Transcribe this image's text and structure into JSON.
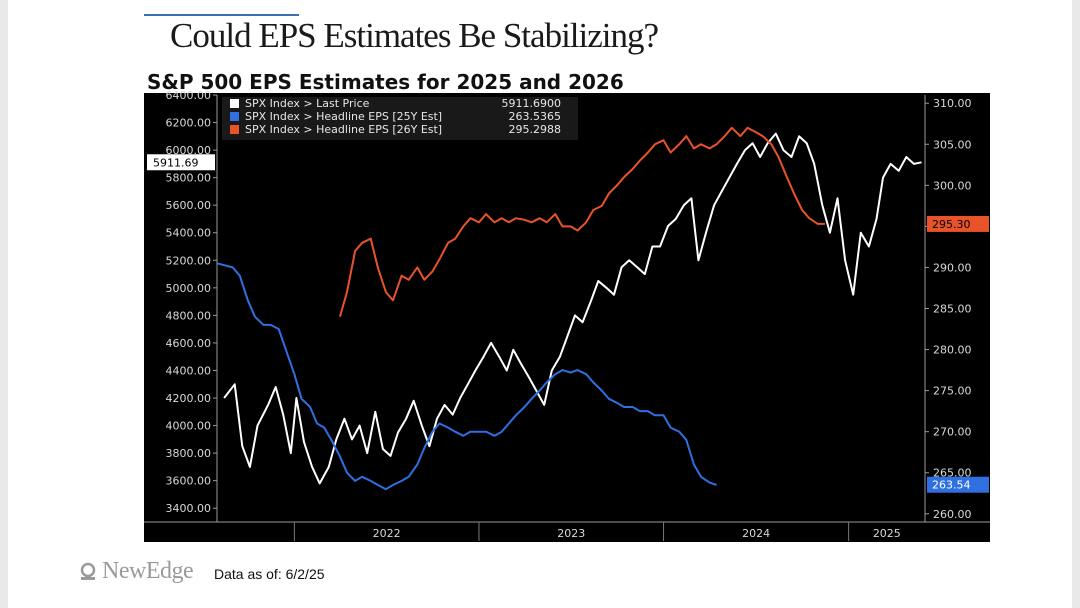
{
  "slide": {
    "title": "Could EPS Estimates Be Stabilizing?",
    "footer_logo": "NewEdge",
    "footer_note": "Data as of: 6/2/25"
  },
  "chart_data": {
    "type": "line",
    "title": "S&P 500 EPS Estimates for 2025 and 2026",
    "background": "#000000",
    "x": {
      "start": "2021-08",
      "end": "2025-06",
      "tick_labels": [
        "2022",
        "2023",
        "2024",
        "2025"
      ]
    },
    "left_axis": {
      "ylim": [
        3300,
        6400
      ],
      "ticks": [
        "3400.00",
        "3600.00",
        "3800.00",
        "4000.00",
        "4200.00",
        "4400.00",
        "4600.00",
        "4800.00",
        "5000.00",
        "5200.00",
        "5400.00",
        "5600.00",
        "5800.00",
        "6000.00",
        "6200.00",
        "6400.00"
      ]
    },
    "right_axis": {
      "ylim": [
        259,
        311
      ],
      "ticks": [
        "260.00",
        "265.00",
        "270.00",
        "275.00",
        "280.00",
        "285.00",
        "290.00",
        "295.00",
        "300.00",
        "305.00",
        "310.00"
      ]
    },
    "legend": {
      "placement": "top-left",
      "entries": [
        {
          "name": "SPX Index > Last Price",
          "value": "5911.6900",
          "color": "#ffffff"
        },
        {
          "name": "SPX Index > Headline EPS [25Y Est]",
          "value": "263.5365",
          "color": "#2f6fe0"
        },
        {
          "name": "SPX Index > Headline EPS [26Y Est]",
          "value": "295.2988",
          "color": "#e8532a"
        }
      ]
    },
    "last_value_labels": {
      "price": "5911.69",
      "eps26": "295.30",
      "eps25": "263.54"
    },
    "series": [
      {
        "name": "SPX Index > Last Price",
        "axis": "left",
        "color": "#ffffff",
        "points": [
          [
            "2021-08-15",
            4200
          ],
          [
            "2021-09-05",
            4300
          ],
          [
            "2021-09-20",
            3850
          ],
          [
            "2021-10-05",
            3700
          ],
          [
            "2021-10-20",
            4000
          ],
          [
            "2021-11-10",
            4150
          ],
          [
            "2021-11-25",
            4280
          ],
          [
            "2021-12-10",
            4080
          ],
          [
            "2021-12-25",
            3800
          ],
          [
            "2022-01-05",
            4200
          ],
          [
            "2022-01-20",
            3880
          ],
          [
            "2022-02-05",
            3700
          ],
          [
            "2022-02-20",
            3580
          ],
          [
            "2022-03-10",
            3700
          ],
          [
            "2022-03-25",
            3900
          ],
          [
            "2022-04-10",
            4050
          ],
          [
            "2022-04-25",
            3900
          ],
          [
            "2022-05-10",
            4000
          ],
          [
            "2022-05-25",
            3800
          ],
          [
            "2022-06-10",
            4100
          ],
          [
            "2022-06-25",
            3830
          ],
          [
            "2022-07-10",
            3780
          ],
          [
            "2022-07-25",
            3950
          ],
          [
            "2022-08-10",
            4050
          ],
          [
            "2022-08-25",
            4180
          ],
          [
            "2022-09-10",
            4000
          ],
          [
            "2022-09-25",
            3850
          ],
          [
            "2022-10-10",
            4050
          ],
          [
            "2022-10-25",
            4150
          ],
          [
            "2022-11-10",
            4080
          ],
          [
            "2022-11-25",
            4200
          ],
          [
            "2022-12-10",
            4300
          ],
          [
            "2022-12-25",
            4400
          ],
          [
            "2023-01-10",
            4500
          ],
          [
            "2023-01-25",
            4600
          ],
          [
            "2023-02-10",
            4500
          ],
          [
            "2023-02-25",
            4400
          ],
          [
            "2023-03-10",
            4550
          ],
          [
            "2023-03-25",
            4450
          ],
          [
            "2023-04-10",
            4350
          ],
          [
            "2023-04-25",
            4250
          ],
          [
            "2023-05-10",
            4150
          ],
          [
            "2023-05-25",
            4400
          ],
          [
            "2023-06-10",
            4500
          ],
          [
            "2023-06-25",
            4650
          ],
          [
            "2023-07-10",
            4800
          ],
          [
            "2023-07-25",
            4750
          ],
          [
            "2023-08-10",
            4900
          ],
          [
            "2023-08-25",
            5050
          ],
          [
            "2023-09-10",
            5000
          ],
          [
            "2023-09-25",
            4950
          ],
          [
            "2023-10-10",
            5150
          ],
          [
            "2023-10-25",
            5200
          ],
          [
            "2023-11-10",
            5150
          ],
          [
            "2023-11-25",
            5100
          ],
          [
            "2023-12-10",
            5300
          ],
          [
            "2023-12-25",
            5300
          ],
          [
            "2024-01-10",
            5450
          ],
          [
            "2024-01-25",
            5500
          ],
          [
            "2024-02-10",
            5600
          ],
          [
            "2024-02-25",
            5650
          ],
          [
            "2024-03-10",
            5200
          ],
          [
            "2024-03-25",
            5400
          ],
          [
            "2024-04-10",
            5600
          ],
          [
            "2024-04-25",
            5700
          ],
          [
            "2024-05-10",
            5800
          ],
          [
            "2024-05-25",
            5900
          ],
          [
            "2024-06-10",
            6000
          ],
          [
            "2024-06-25",
            6050
          ],
          [
            "2024-07-10",
            5950
          ],
          [
            "2024-07-25",
            6050
          ],
          [
            "2024-08-10",
            6120
          ],
          [
            "2024-08-25",
            6000
          ],
          [
            "2024-09-10",
            5950
          ],
          [
            "2024-09-25",
            6100
          ],
          [
            "2024-10-10",
            6050
          ],
          [
            "2024-10-25",
            5900
          ],
          [
            "2024-11-10",
            5600
          ],
          [
            "2024-11-25",
            5400
          ],
          [
            "2024-12-10",
            5650
          ],
          [
            "2024-12-25",
            5200
          ],
          [
            "2025-01-10",
            4950
          ],
          [
            "2025-01-25",
            5400
          ],
          [
            "2025-02-10",
            5300
          ],
          [
            "2025-02-25",
            5500
          ],
          [
            "2025-03-10",
            5800
          ],
          [
            "2025-03-25",
            5900
          ],
          [
            "2025-04-10",
            5850
          ],
          [
            "2025-04-25",
            5950
          ],
          [
            "2025-05-10",
            5900
          ],
          [
            "2025-05-25",
            5911.69
          ]
        ]
      },
      {
        "name": "SPX Index > Headline EPS [26Y Est]",
        "axis": "right",
        "color": "#e8532a",
        "points": [
          [
            "2022-04-01",
            284
          ],
          [
            "2022-04-15",
            287
          ],
          [
            "2022-05-01",
            292
          ],
          [
            "2022-05-15",
            293
          ],
          [
            "2022-06-01",
            293.5
          ],
          [
            "2022-06-15",
            290
          ],
          [
            "2022-07-01",
            287
          ],
          [
            "2022-07-15",
            286
          ],
          [
            "2022-08-01",
            289
          ],
          [
            "2022-08-15",
            288.5
          ],
          [
            "2022-09-01",
            290
          ],
          [
            "2022-09-15",
            288.5
          ],
          [
            "2022-10-01",
            289.5
          ],
          [
            "2022-10-15",
            291
          ],
          [
            "2022-11-01",
            293
          ],
          [
            "2022-11-15",
            293.5
          ],
          [
            "2022-12-01",
            295
          ],
          [
            "2022-12-15",
            296
          ],
          [
            "2023-01-01",
            295.5
          ],
          [
            "2023-01-15",
            296.5
          ],
          [
            "2023-02-01",
            295.5
          ],
          [
            "2023-02-15",
            296
          ],
          [
            "2023-03-01",
            295.5
          ],
          [
            "2023-03-15",
            296
          ],
          [
            "2023-04-01",
            295.8
          ],
          [
            "2023-04-15",
            295.5
          ],
          [
            "2023-05-01",
            296
          ],
          [
            "2023-05-15",
            295.5
          ],
          [
            "2023-06-01",
            296.5
          ],
          [
            "2023-06-15",
            295
          ],
          [
            "2023-07-01",
            295
          ],
          [
            "2023-07-15",
            294.5
          ],
          [
            "2023-08-01",
            295.5
          ],
          [
            "2023-08-15",
            297
          ],
          [
            "2023-09-01",
            297.5
          ],
          [
            "2023-09-15",
            299
          ],
          [
            "2023-10-01",
            300
          ],
          [
            "2023-10-15",
            301
          ],
          [
            "2023-11-01",
            302
          ],
          [
            "2023-11-15",
            303
          ],
          [
            "2023-12-01",
            304
          ],
          [
            "2023-12-15",
            305
          ],
          [
            "2024-01-01",
            305.5
          ],
          [
            "2024-01-15",
            304
          ],
          [
            "2024-02-01",
            305
          ],
          [
            "2024-02-15",
            306
          ],
          [
            "2024-03-01",
            304.5
          ],
          [
            "2024-03-15",
            305
          ],
          [
            "2024-04-01",
            304.5
          ],
          [
            "2024-04-15",
            305
          ],
          [
            "2024-05-01",
            306
          ],
          [
            "2024-05-15",
            307
          ],
          [
            "2024-06-01",
            306
          ],
          [
            "2024-06-15",
            307
          ],
          [
            "2024-07-01",
            306.5
          ],
          [
            "2024-07-15",
            306
          ],
          [
            "2024-08-01",
            305
          ],
          [
            "2024-08-15",
            303.5
          ],
          [
            "2024-09-01",
            301
          ],
          [
            "2024-09-15",
            299
          ],
          [
            "2024-10-01",
            297
          ],
          [
            "2024-10-15",
            296
          ],
          [
            "2024-11-01",
            295.3
          ],
          [
            "2024-11-15",
            295.3
          ]
        ]
      },
      {
        "name": "SPX Index > Headline EPS [25Y Est]",
        "axis": "right",
        "color": "#2f6fe0",
        "points": [
          [
            "2021-08-01",
            290.5
          ],
          [
            "2021-09-01",
            290
          ],
          [
            "2021-09-15",
            289
          ],
          [
            "2021-10-01",
            286
          ],
          [
            "2021-10-15",
            284
          ],
          [
            "2021-11-01",
            283
          ],
          [
            "2021-11-15",
            283
          ],
          [
            "2021-12-01",
            282.5
          ],
          [
            "2021-12-15",
            280
          ],
          [
            "2022-01-01",
            277
          ],
          [
            "2022-01-15",
            274
          ],
          [
            "2022-02-01",
            273
          ],
          [
            "2022-02-15",
            271
          ],
          [
            "2022-03-01",
            270.5
          ],
          [
            "2022-03-15",
            269
          ],
          [
            "2022-04-01",
            267
          ],
          [
            "2022-04-15",
            265
          ],
          [
            "2022-05-01",
            264
          ],
          [
            "2022-05-15",
            264.5
          ],
          [
            "2022-06-01",
            264
          ],
          [
            "2022-06-15",
            263.5
          ],
          [
            "2022-07-01",
            263
          ],
          [
            "2022-07-15",
            263.5
          ],
          [
            "2022-08-01",
            264
          ],
          [
            "2022-08-15",
            264.5
          ],
          [
            "2022-09-01",
            266
          ],
          [
            "2022-09-15",
            268
          ],
          [
            "2022-10-01",
            270
          ],
          [
            "2022-10-15",
            271
          ],
          [
            "2022-11-01",
            270.5
          ],
          [
            "2022-11-15",
            270
          ],
          [
            "2022-12-01",
            269.5
          ],
          [
            "2022-12-15",
            270
          ],
          [
            "2023-01-01",
            270
          ],
          [
            "2023-01-15",
            270
          ],
          [
            "2023-02-01",
            269.5
          ],
          [
            "2023-02-15",
            270
          ],
          [
            "2023-03-01",
            271
          ],
          [
            "2023-03-15",
            272
          ],
          [
            "2023-04-01",
            273
          ],
          [
            "2023-04-15",
            274
          ],
          [
            "2023-05-01",
            275
          ],
          [
            "2023-05-15",
            276
          ],
          [
            "2023-06-01",
            277
          ],
          [
            "2023-06-15",
            277.5
          ],
          [
            "2023-07-01",
            277.2
          ],
          [
            "2023-07-15",
            277.5
          ],
          [
            "2023-08-01",
            277
          ],
          [
            "2023-08-15",
            276
          ],
          [
            "2023-09-01",
            275
          ],
          [
            "2023-09-15",
            274
          ],
          [
            "2023-10-01",
            273.5
          ],
          [
            "2023-10-15",
            273
          ],
          [
            "2023-11-01",
            273
          ],
          [
            "2023-11-15",
            272.5
          ],
          [
            "2023-12-01",
            272.5
          ],
          [
            "2023-12-15",
            272
          ],
          [
            "2024-01-01",
            272
          ],
          [
            "2024-01-15",
            270.5
          ],
          [
            "2024-02-01",
            270
          ],
          [
            "2024-02-15",
            269
          ],
          [
            "2024-03-01",
            266
          ],
          [
            "2024-03-15",
            264.5
          ],
          [
            "2024-04-01",
            263.8
          ],
          [
            "2024-04-15",
            263.5
          ]
        ]
      }
    ]
  }
}
